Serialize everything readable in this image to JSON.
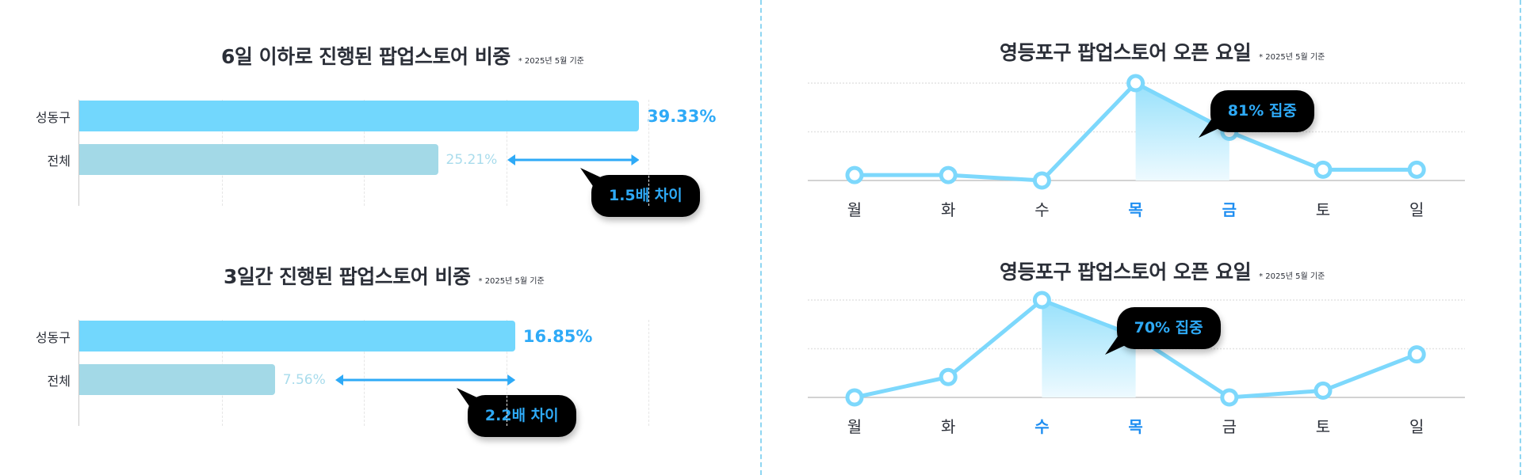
{
  "chart_data": [
    {
      "type": "bar",
      "orientation": "horizontal",
      "title": "6일 이하로 진행된 팝업스토어 비중",
      "note": "* 2025년 5월 기준",
      "categories": [
        "성동구",
        "전체"
      ],
      "values": [
        39.33,
        25.21
      ],
      "value_labels": [
        "39.33%",
        "25.21%"
      ],
      "xlim": [
        0,
        40
      ],
      "grid": true,
      "callout": "1.5배 차이",
      "colors": [
        "#72d7fd",
        "#a3d9e7"
      ]
    },
    {
      "type": "bar",
      "orientation": "horizontal",
      "title": "3일간 진행된 팝업스토어 비중",
      "note": "* 2025년 5월 기준",
      "categories": [
        "성동구",
        "전체"
      ],
      "values": [
        16.85,
        7.56
      ],
      "value_labels": [
        "16.85%",
        "7.56%"
      ],
      "xlim": [
        0,
        22
      ],
      "grid": true,
      "callout": "2.2배 차이",
      "colors": [
        "#72d7fd",
        "#a3d9e7"
      ]
    },
    {
      "type": "line",
      "title": "영등포구 팝업스토어 오픈 요일",
      "note": "* 2025년 5월 기준",
      "categories": [
        "월",
        "화",
        "수",
        "목",
        "금",
        "토",
        "일"
      ],
      "values": [
        3,
        3,
        0,
        54,
        27,
        6,
        6
      ],
      "ylim": [
        0,
        54
      ],
      "grid": true,
      "highlight": [
        3,
        4
      ],
      "callout": "81% 집중",
      "color": "#7dd8fc"
    },
    {
      "type": "line",
      "title": "영등포구 팝업스토어 오픈 요일",
      "note": "* 2025년 5월 기준",
      "categories": [
        "월",
        "화",
        "수",
        "목",
        "금",
        "토",
        "일"
      ],
      "values": [
        0,
        9,
        43,
        27,
        0,
        3,
        19
      ],
      "ylim": [
        0,
        43
      ],
      "grid": true,
      "highlight": [
        2,
        3
      ],
      "callout": "70% 집중",
      "color": "#7dd8fc"
    }
  ],
  "colors": {
    "accent": "#2eaaf7",
    "highlight_label": "#1f8ef1",
    "divider": "#8fd6f2",
    "callout_bg": "#000000"
  }
}
